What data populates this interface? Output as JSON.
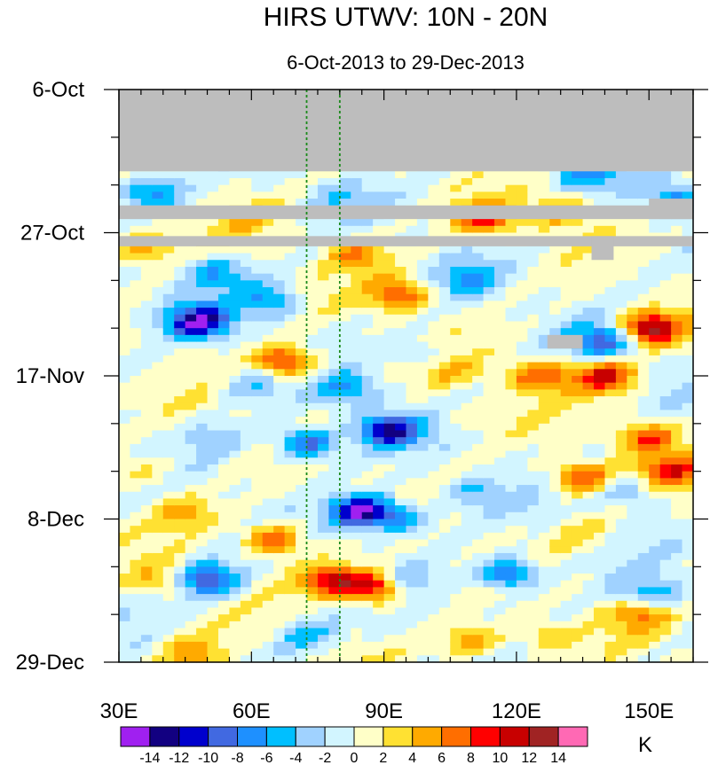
{
  "chart_data": {
    "type": "heatmap",
    "title": "HIRS UTWV: 10N - 20N",
    "subtitle": "6-Oct-2013 to 29-Dec-2013",
    "x_axis": {
      "range": [
        30,
        160
      ],
      "ticks": [
        30,
        60,
        90,
        120,
        150
      ],
      "tick_labels": [
        "30E",
        "60E",
        "90E",
        "120E",
        "150E"
      ]
    },
    "y_axis": {
      "range_days": [
        0,
        84
      ],
      "ticks": [
        0,
        21,
        42,
        63,
        84
      ],
      "tick_labels": [
        "6-Oct",
        "27-Oct",
        "17-Nov",
        "8-Dec",
        "29-Dec"
      ]
    },
    "reference_lines_lon": [
      72.5,
      80
    ],
    "missing_regions": [
      {
        "lon": [
          30,
          160
        ],
        "days": [
          0,
          12
        ]
      },
      {
        "lon": [
          30,
          160
        ],
        "days": [
          17,
          19
        ]
      },
      {
        "lon": [
          150,
          160
        ],
        "days": [
          16,
          19
        ]
      },
      {
        "lon": [
          30,
          160
        ],
        "days": [
          21.5,
          23
        ]
      },
      {
        "lon": [
          137,
          142
        ],
        "days": [
          21.5,
          25
        ]
      },
      {
        "lon": [
          127,
          135
        ],
        "days": [
          36,
          38
        ]
      }
    ],
    "anomalies": [
      {
        "lon": 48,
        "day": 34,
        "value": -13
      },
      {
        "lon": 37,
        "day": 15,
        "value": -7
      },
      {
        "lon": 52,
        "day": 27,
        "value": -6
      },
      {
        "lon": 64,
        "day": 31,
        "value": -6
      },
      {
        "lon": 60,
        "day": 43,
        "value": -4
      },
      {
        "lon": 82,
        "day": 44,
        "value": -6
      },
      {
        "lon": 73,
        "day": 52,
        "value": -10
      },
      {
        "lon": 91,
        "day": 50,
        "value": -12
      },
      {
        "lon": 85,
        "day": 62,
        "value": -15
      },
      {
        "lon": 95,
        "day": 63,
        "value": -6
      },
      {
        "lon": 50,
        "day": 72,
        "value": -11
      },
      {
        "lon": 118,
        "day": 71,
        "value": -10
      },
      {
        "lon": 95,
        "day": 72,
        "value": -4
      },
      {
        "lon": 145,
        "day": 59,
        "value": -5
      },
      {
        "lon": 150,
        "day": 74,
        "value": -6
      },
      {
        "lon": 140,
        "day": 37,
        "value": -9
      },
      {
        "lon": 99,
        "day": 39,
        "value": -4
      },
      {
        "lon": 109,
        "day": 28,
        "value": -5
      },
      {
        "lon": 156,
        "day": 16,
        "value": -7
      },
      {
        "lon": 135,
        "day": 12,
        "value": -6
      },
      {
        "lon": 80,
        "day": 16,
        "value": -3
      },
      {
        "lon": 110,
        "day": 59,
        "value": -4
      },
      {
        "lon": 72,
        "day": 80,
        "value": -5
      },
      {
        "lon": 52,
        "day": 51,
        "value": -3
      },
      {
        "lon": 68,
        "day": 40,
        "value": 10
      },
      {
        "lon": 35,
        "day": 23,
        "value": 6
      },
      {
        "lon": 84,
        "day": 24,
        "value": 6
      },
      {
        "lon": 94,
        "day": 30,
        "value": 8
      },
      {
        "lon": 113,
        "day": 19,
        "value": 8
      },
      {
        "lon": 130,
        "day": 18,
        "value": 6
      },
      {
        "lon": 150,
        "day": 35,
        "value": 13
      },
      {
        "lon": 140,
        "day": 42,
        "value": 10
      },
      {
        "lon": 125,
        "day": 42,
        "value": 8
      },
      {
        "lon": 104,
        "day": 41,
        "value": 4
      },
      {
        "lon": 65,
        "day": 66,
        "value": 9
      },
      {
        "lon": 45,
        "day": 62,
        "value": 5
      },
      {
        "lon": 88,
        "day": 73,
        "value": 12
      },
      {
        "lon": 78,
        "day": 72,
        "value": 10
      },
      {
        "lon": 135,
        "day": 57,
        "value": 9
      },
      {
        "lon": 155,
        "day": 56,
        "value": 8
      },
      {
        "lon": 150,
        "day": 51,
        "value": 8
      },
      {
        "lon": 47,
        "day": 83,
        "value": 6
      },
      {
        "lon": 110,
        "day": 81,
        "value": 6
      },
      {
        "lon": 148,
        "day": 77,
        "value": 6
      },
      {
        "lon": 125,
        "day": 80,
        "value": 4
      },
      {
        "lon": 36,
        "day": 56,
        "value": 4
      },
      {
        "lon": 110,
        "day": 48,
        "value": 2
      },
      {
        "lon": 135,
        "day": 65,
        "value": 3
      },
      {
        "lon": 40,
        "day": 72,
        "value": 4
      },
      {
        "lon": 60,
        "day": 19,
        "value": 3
      }
    ],
    "colorbar": {
      "unit": "K",
      "labels": [
        "-14",
        "-12",
        "-10",
        "-8",
        "-6",
        "-4",
        "-2",
        "0",
        "2",
        "4",
        "6",
        "8",
        "10",
        "12",
        "14"
      ],
      "levels": [
        -14,
        -12,
        -10,
        -8,
        -6,
        -4,
        -2,
        0,
        2,
        4,
        6,
        8,
        10,
        12,
        14
      ],
      "colors": [
        "#a020f0",
        "#120081",
        "#0000cd",
        "#4169e1",
        "#1e90ff",
        "#00bfff",
        "#a0d2ff",
        "#d2f5ff",
        "#ffffc8",
        "#ffe132",
        "#ffaa00",
        "#ff6e00",
        "#ff0000",
        "#c80000",
        "#a02323",
        "#ff69b4"
      ]
    }
  }
}
